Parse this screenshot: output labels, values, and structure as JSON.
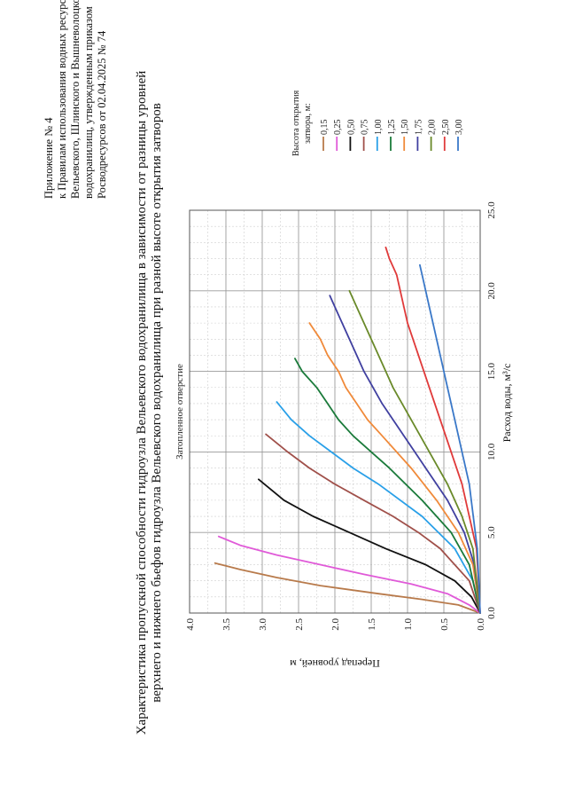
{
  "appendix": {
    "line1": "Приложение № 4",
    "line2": "к Правилам использования водных ресурсов",
    "line3": "Вельевского, Шлинского и Вышневолоцкого",
    "line4": "водохранилищ,    утвержденным     приказом",
    "line5": "Росводресурсов от 02.04.2025 № 74"
  },
  "chart_data": {
    "type": "line",
    "title_line1": "Характеристика пропускной способности гидроузла Вельевского водохранилища в зависимости от разницы уровней",
    "title_line2": "верхнего и нижнего бьефов гидроузла Вельевского водохранилища при разной высоте открытия затворов",
    "subtitle": "Затопленное  отверстие",
    "xlabel": "Расход воды, м³/с",
    "ylabel": "Перепад уровней, м",
    "xlim": [
      0,
      25
    ],
    "ylim": [
      0,
      4
    ],
    "x_ticks": [
      "0.0",
      "5.0",
      "10.0",
      "15.0",
      "20.0",
      "25.0"
    ],
    "y_ticks": [
      "0.0",
      "0.5",
      "1.0",
      "1.5",
      "2.0",
      "2.5",
      "3.0",
      "3.5",
      "4.0"
    ],
    "grid": true,
    "legend_title_line1": "Высота открытия",
    "legend_title_line2": "затвора, м:",
    "legend_position": "right",
    "series": [
      {
        "name": "0,15",
        "color": "#b87a4b",
        "x": [
          0,
          0.5,
          0.85,
          1.2,
          1.7,
          2.2,
          2.7,
          3.1
        ],
        "y": [
          0,
          0.3,
          0.8,
          1.4,
          2.2,
          2.8,
          3.3,
          3.65
        ]
      },
      {
        "name": "0,25",
        "color": "#e05ad8",
        "x": [
          0,
          0.5,
          1.2,
          1.8,
          2.4,
          3.0,
          3.6,
          4.2,
          4.75
        ],
        "y": [
          0,
          0.15,
          0.45,
          0.95,
          1.6,
          2.2,
          2.8,
          3.3,
          3.6
        ]
      },
      {
        "name": "0,50",
        "color": "#111111",
        "x": [
          0,
          1,
          2,
          3,
          4,
          5,
          6,
          7,
          8.3
        ],
        "y": [
          0,
          0.12,
          0.35,
          0.75,
          1.3,
          1.8,
          2.3,
          2.7,
          3.05
        ]
      },
      {
        "name": "0,75",
        "color": "#a0504a",
        "x": [
          0,
          2,
          4,
          5,
          6,
          7,
          8,
          9,
          10,
          11.1
        ],
        "y": [
          0,
          0.15,
          0.55,
          0.85,
          1.2,
          1.6,
          2.0,
          2.35,
          2.65,
          2.95
        ]
      },
      {
        "name": "1,00",
        "color": "#2aa0e8",
        "x": [
          0,
          2,
          4,
          6,
          8,
          9,
          10,
          11,
          12,
          13.1
        ],
        "y": [
          0,
          0.1,
          0.35,
          0.8,
          1.4,
          1.75,
          2.05,
          2.35,
          2.6,
          2.8
        ]
      },
      {
        "name": "1,25",
        "color": "#1a7a3a",
        "x": [
          0,
          3,
          5,
          7,
          9,
          10,
          11,
          12,
          13,
          14,
          15,
          15.8
        ],
        "y": [
          0,
          0.15,
          0.4,
          0.8,
          1.25,
          1.5,
          1.75,
          1.95,
          2.1,
          2.25,
          2.45,
          2.55
        ]
      },
      {
        "name": "1,50",
        "color": "#f08a3a",
        "x": [
          0,
          3,
          5,
          7,
          9,
          11,
          12,
          13,
          14,
          15,
          16,
          17,
          18
        ],
        "y": [
          0,
          0.1,
          0.3,
          0.6,
          0.95,
          1.35,
          1.55,
          1.7,
          1.85,
          1.95,
          2.1,
          2.2,
          2.35
        ]
      },
      {
        "name": "1,75",
        "color": "#4040a0",
        "x": [
          0,
          3,
          5,
          7,
          9,
          11,
          13,
          15,
          16,
          17,
          18,
          19,
          19.7
        ],
        "y": [
          0,
          0.08,
          0.22,
          0.45,
          0.75,
          1.05,
          1.35,
          1.6,
          1.7,
          1.8,
          1.9,
          2.0,
          2.07
        ]
      },
      {
        "name": "2,00",
        "color": "#6a8a2a",
        "x": [
          0,
          4,
          6,
          8,
          10,
          12,
          14,
          16,
          17,
          18,
          19,
          20
        ],
        "y": [
          0,
          0.1,
          0.25,
          0.45,
          0.7,
          0.95,
          1.2,
          1.4,
          1.5,
          1.6,
          1.7,
          1.8
        ]
      },
      {
        "name": "2,50",
        "color": "#e03a3a",
        "x": [
          0,
          4,
          8,
          10,
          12,
          14,
          16,
          18,
          20,
          21,
          22,
          22.7
        ],
        "y": [
          0,
          0.05,
          0.25,
          0.4,
          0.55,
          0.7,
          0.85,
          1.0,
          1.1,
          1.15,
          1.25,
          1.3
        ]
      },
      {
        "name": "3,00",
        "color": "#3a78c8",
        "x": [
          0,
          4,
          8,
          10,
          12,
          14,
          16,
          18,
          19,
          20,
          21,
          21.6
        ],
        "y": [
          0,
          0.04,
          0.15,
          0.25,
          0.35,
          0.45,
          0.55,
          0.65,
          0.7,
          0.75,
          0.8,
          0.83
        ]
      }
    ]
  }
}
